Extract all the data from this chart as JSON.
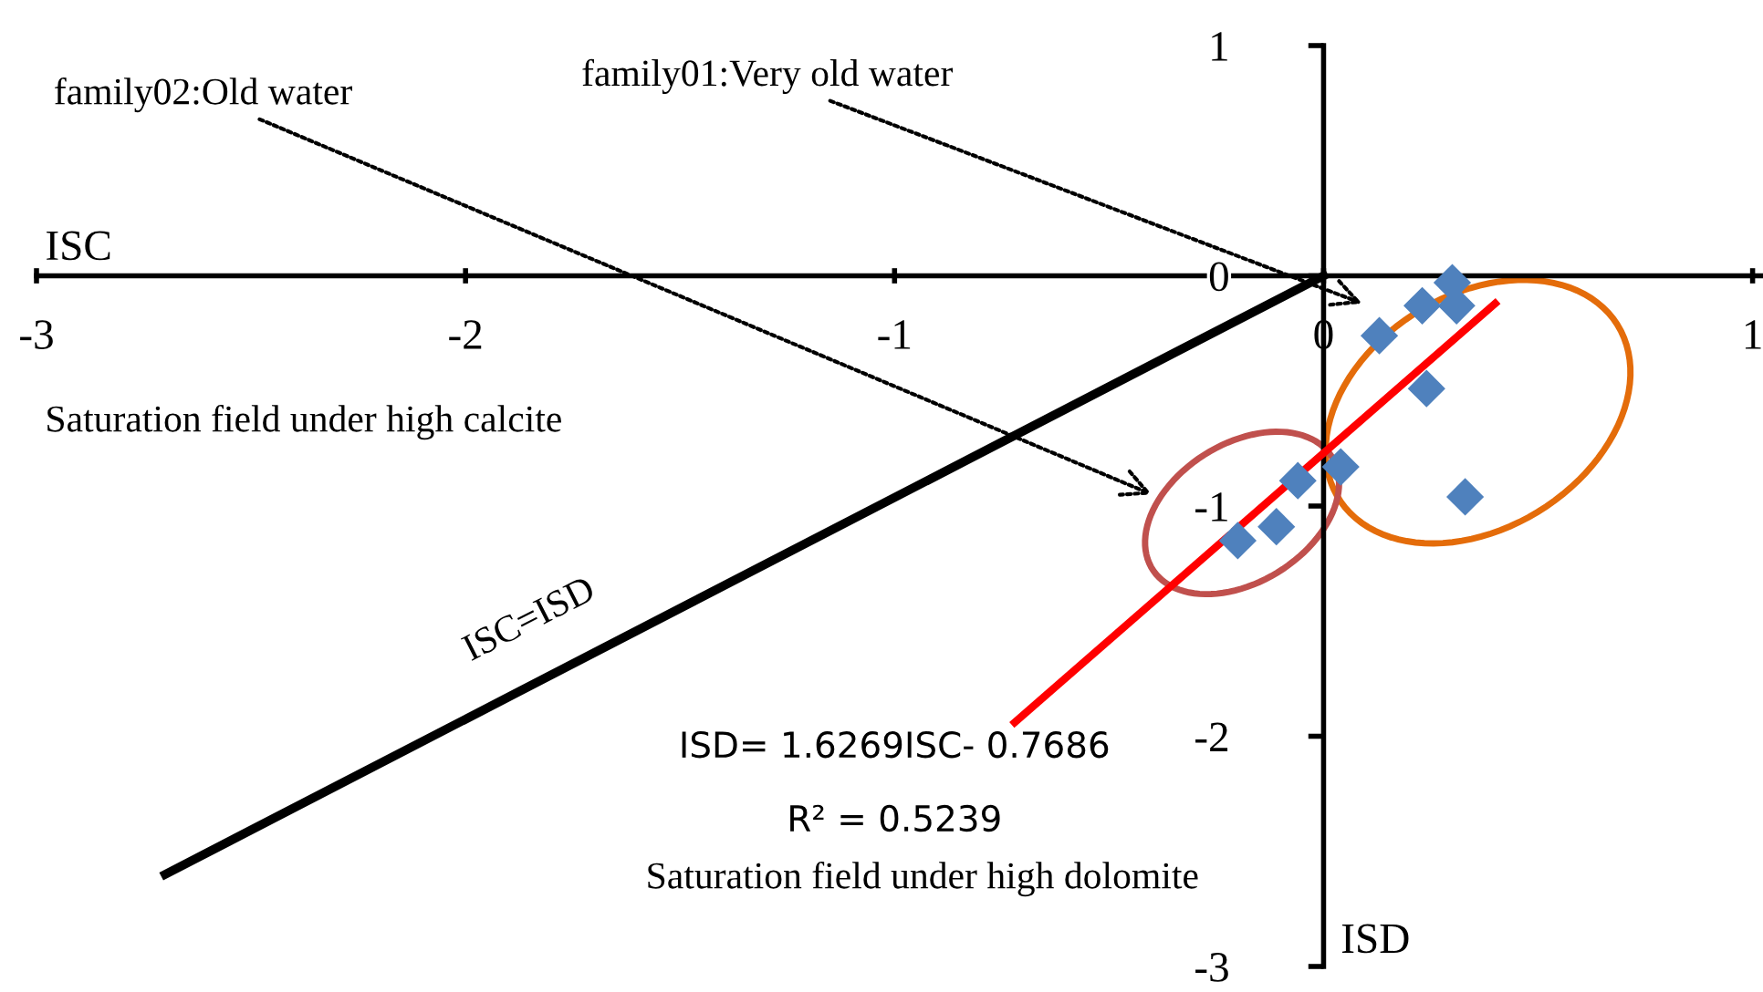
{
  "chart_data": {
    "type": "scatter",
    "xlabel": "ISC",
    "ylabel": "ISD",
    "grid": false,
    "xlim": [
      -3,
      1.02
    ],
    "ylim": [
      -3,
      1
    ],
    "xticks": [
      -3,
      -2,
      -1,
      0,
      1
    ],
    "yticks": [
      -3,
      -2,
      -1,
      0,
      1
    ],
    "series": [
      {
        "marker": "diamond",
        "color": "#4f81bd",
        "x": [
          0.3,
          0.31,
          0.23,
          0.13,
          0.24,
          0.33,
          0.04,
          -0.06,
          -0.11,
          -0.2
        ],
        "values": [
          -0.03,
          -0.13,
          -0.13,
          -0.26,
          -0.49,
          -0.96,
          -0.83,
          -0.89,
          -1.09,
          -1.15
        ]
      },
      {
        "type": "line",
        "color": "#ff0000",
        "x": [
          -0.72,
          0.4
        ],
        "values": [
          -1.94,
          -0.12
        ]
      },
      {
        "type": "line",
        "color": "#000000",
        "x": [
          -2.7,
          0
        ],
        "values": [
          -2.6,
          0
        ]
      }
    ],
    "annotations": [
      "family02:Old water",
      "family01:Very old water",
      "Saturation field under high calcite",
      "ISC=ISD",
      "ISD= 1.6269ISC- 0.7686",
      "R² = 0.5239",
      "Saturation field under high dolomite"
    ]
  }
}
